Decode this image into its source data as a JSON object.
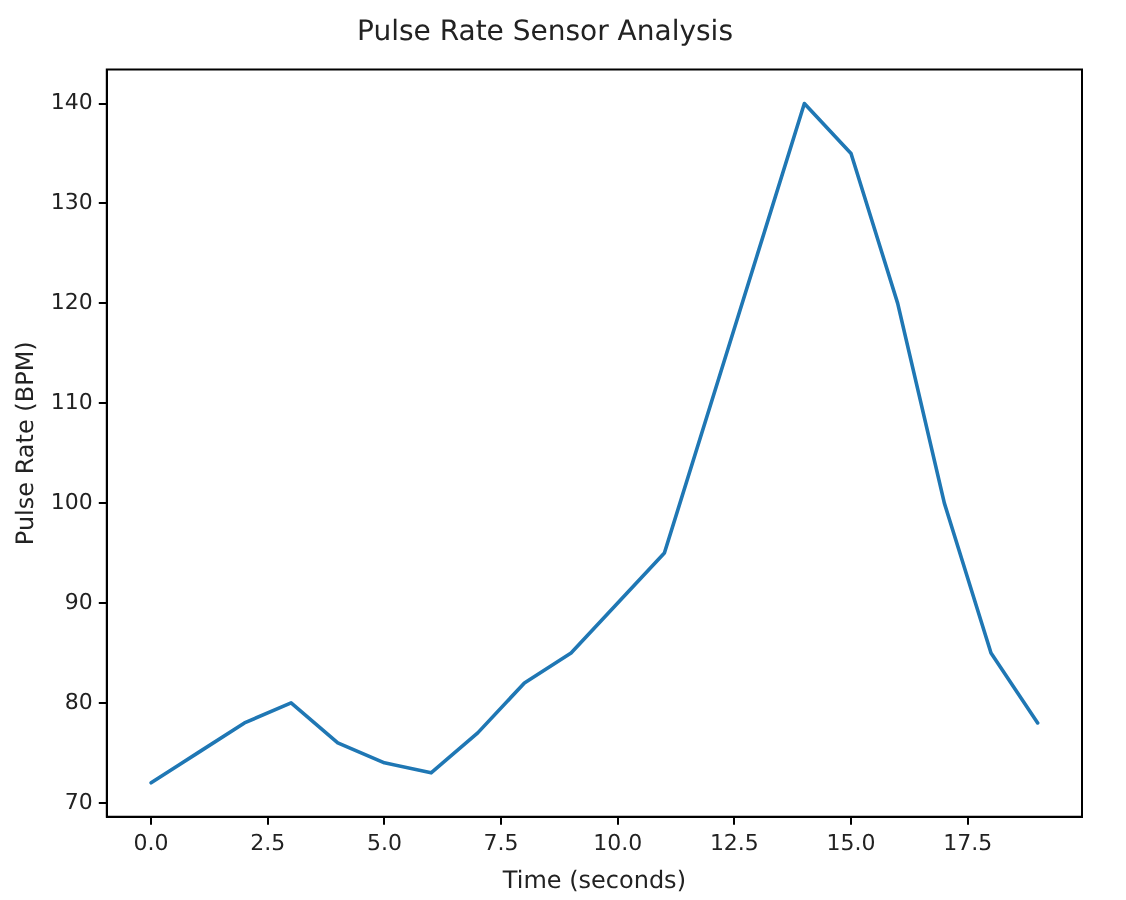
{
  "chart_data": {
    "type": "line",
    "title": "Pulse Rate Sensor Analysis",
    "xlabel": "Time (seconds)",
    "ylabel": "Pulse Rate (BPM)",
    "x": [
      0,
      1,
      2,
      3,
      4,
      5,
      6,
      7,
      8,
      9,
      10,
      11,
      12,
      13,
      14,
      15,
      16,
      17,
      18,
      19
    ],
    "series": [
      {
        "color": "#1f77b4",
        "values": [
          72,
          75,
          78,
          80,
          76,
          74,
          73,
          77,
          82,
          85,
          90,
          95,
          110,
          125,
          140,
          135,
          120,
          100,
          85,
          78
        ]
      }
    ],
    "xlim": [
      -0.95,
      19.95
    ],
    "ylim": [
      68.6,
      143.4
    ],
    "xticks": [
      {
        "value": 0,
        "label": "0.0"
      },
      {
        "value": 2.5,
        "label": "2.5"
      },
      {
        "value": 5,
        "label": "5.0"
      },
      {
        "value": 7.5,
        "label": "7.5"
      },
      {
        "value": 10,
        "label": "10.0"
      },
      {
        "value": 12.5,
        "label": "12.5"
      },
      {
        "value": 15,
        "label": "15.0"
      },
      {
        "value": 17.5,
        "label": "17.5"
      }
    ],
    "yticks": [
      70,
      80,
      90,
      100,
      110,
      120,
      130,
      140
    ],
    "grid": false,
    "legend": false,
    "marker": "none",
    "line_style": "solid"
  }
}
